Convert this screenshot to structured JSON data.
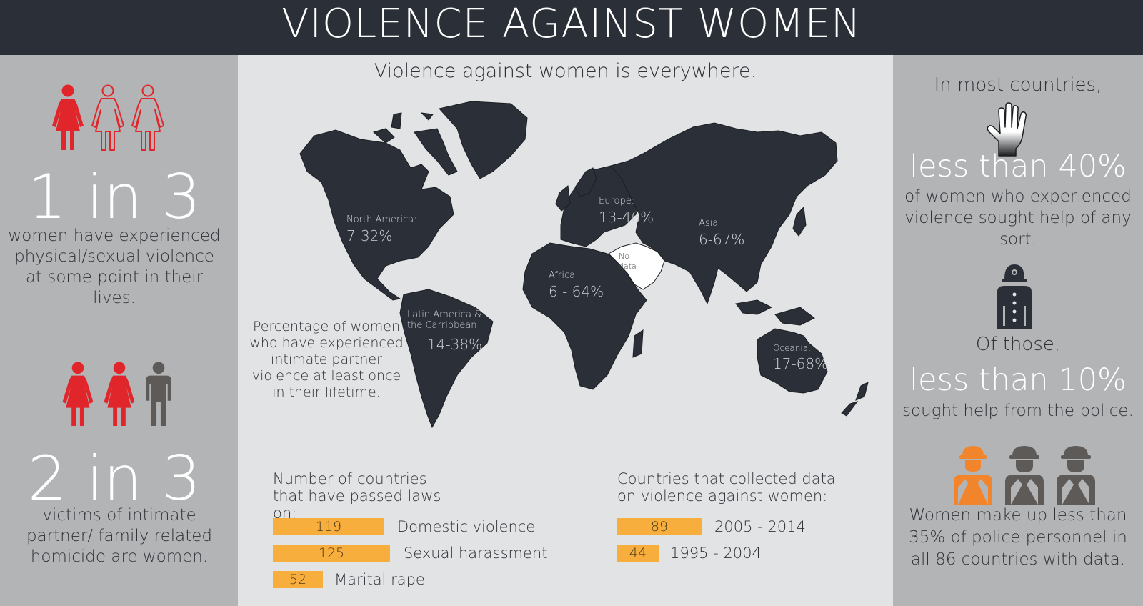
{
  "title": "VIOLENCE AGAINST WOMEN",
  "left": {
    "stat1": {
      "big": "1 in 3",
      "text": "women have experienced physical/sexual violence at some point in their lives."
    },
    "stat2": {
      "big": "2 in 3",
      "text": "victims of intimate partner/ family related homicide are women."
    }
  },
  "center": {
    "subtitle": "Violence against women is everywhere.",
    "map_note": "Percentage of women who have experienced intimate partner violence at least once in their lifetime.",
    "regions": [
      {
        "label": "North America:",
        "pct": "7-32%"
      },
      {
        "label": "Europe:",
        "pct": "13-46%"
      },
      {
        "label": "Asia",
        "pct": "6-67%"
      },
      {
        "label": "Africa:",
        "pct": "6 - 64%"
      },
      {
        "label": "Latin America & the Carribbean",
        "pct": "14-38%"
      },
      {
        "label": "Oceania:",
        "pct": "17-68%"
      },
      {
        "label": "No data",
        "pct": ""
      }
    ],
    "laws": {
      "heading": "Number of countries that have passed laws on:",
      "items": [
        {
          "value": 119,
          "label": "Domestic violence"
        },
        {
          "value": 125,
          "label": "Sexual harassment"
        },
        {
          "value": 52,
          "label": "Marital rape"
        }
      ]
    },
    "data_collection": {
      "heading": "Countries that collected data on violence against women:",
      "items": [
        {
          "value": 89,
          "label": "2005 - 2014"
        },
        {
          "value": 44,
          "label": "1995 - 2004"
        }
      ]
    }
  },
  "right": {
    "intro": "In most countries,",
    "big1": "less than 40%",
    "text1": "of women who experienced violence sought help of any sort.",
    "of_those": "Of those,",
    "big2": "less than 10%",
    "text2": "sought help from the police.",
    "text3": "Women make up less than 35% of police personnel in all 86 countries with data."
  },
  "colors": {
    "accent_red": "#e0262b",
    "bar_orange": "#f8ae3c",
    "officer_orange": "#f2852c",
    "dark": "#2b3038",
    "gray_figure": "#5d5a58"
  }
}
